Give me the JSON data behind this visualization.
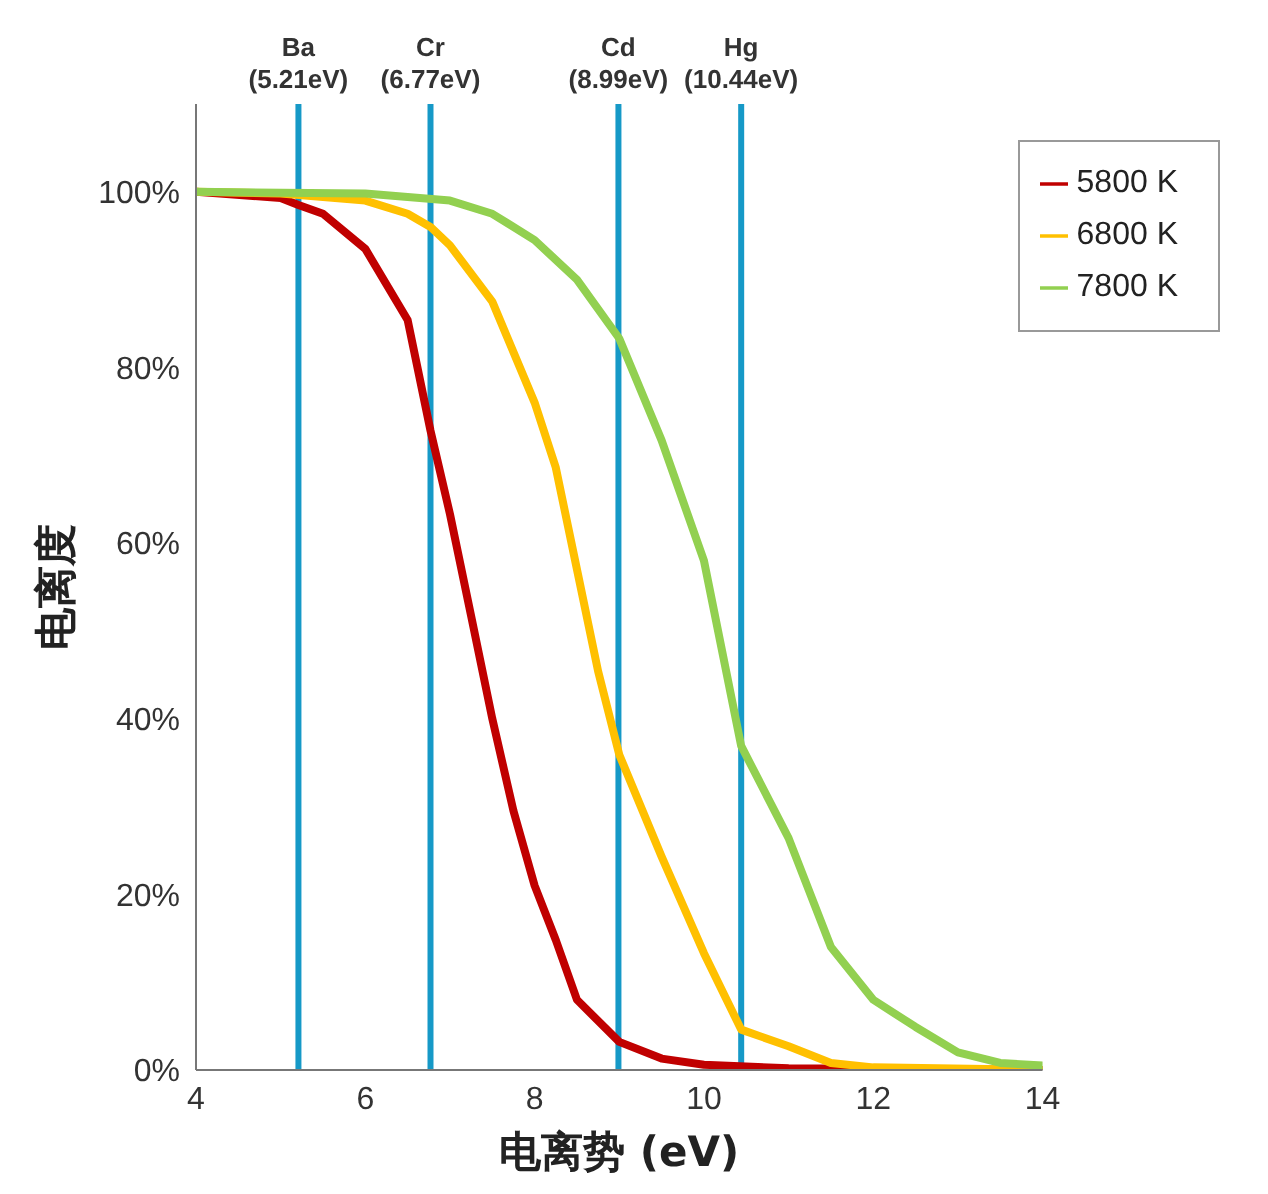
{
  "chart_data": {
    "type": "line",
    "xlabel": "电离势 (eV)",
    "ylabel": "电离度",
    "xlim": [
      4,
      14
    ],
    "xticks": [
      4,
      6,
      8,
      10,
      12,
      14
    ],
    "ylim": [
      0,
      110
    ],
    "yticks": [
      {
        "value": 0,
        "label": "0%"
      },
      {
        "value": 20,
        "label": "20%"
      },
      {
        "value": 40,
        "label": "40%"
      },
      {
        "value": 60,
        "label": "60%"
      },
      {
        "value": 80,
        "label": "80%"
      },
      {
        "value": 100,
        "label": "100%"
      }
    ],
    "grid": false,
    "legend": "top right",
    "marker": "none",
    "line_style": "solid",
    "series": [
      {
        "name": "5800 K",
        "color": "#c00000",
        "x": [
          4,
          5,
          5.21,
          5.5,
          6,
          6.5,
          6.77,
          7,
          7.25,
          7.5,
          7.75,
          8,
          8.25,
          8.5,
          9,
          9.5,
          10,
          11,
          14
        ],
        "values": [
          100,
          99.3,
          98.5,
          97.5,
          93.5,
          85.4,
          72.8,
          63.3,
          51.7,
          40,
          29.5,
          21,
          14.8,
          8,
          3.2,
          1.3,
          0.6,
          0.2,
          0
        ]
      },
      {
        "name": "6800 K",
        "color": "#ffc000",
        "x": [
          4,
          5,
          6,
          6.5,
          6.77,
          7,
          7.5,
          8,
          8.25,
          8.5,
          8.75,
          9,
          9.5,
          10,
          10.44,
          11,
          11.5,
          12,
          14
        ],
        "values": [
          100,
          99.8,
          99,
          97.5,
          96,
          93.9,
          87.5,
          76,
          68.6,
          57,
          45.4,
          35.9,
          24.3,
          13.3,
          4.6,
          2.7,
          0.8,
          0.3,
          0
        ]
      },
      {
        "name": "7800 K",
        "color": "#92d050",
        "x": [
          4,
          6,
          7,
          7.5,
          8,
          8.5,
          9,
          9.5,
          10,
          10.44,
          11,
          11.5,
          12,
          12.5,
          13,
          13.5,
          14
        ],
        "values": [
          100,
          99.8,
          99,
          97.5,
          94.5,
          90,
          83.3,
          71.7,
          58,
          36.9,
          26.4,
          14,
          8,
          4.9,
          2,
          0.8,
          0.5
        ]
      }
    ],
    "ref_lines": [
      {
        "axis": "x",
        "value": 5.21,
        "label": "Ba\n(5.21eV)",
        "color": "#1699c7"
      },
      {
        "axis": "x",
        "value": 6.77,
        "label": "Cr\n(6.77eV)",
        "color": "#1699c7"
      },
      {
        "axis": "x",
        "value": 8.99,
        "label": "Cd\n(8.99eV)",
        "color": "#1699c7"
      },
      {
        "axis": "x",
        "value": 10.44,
        "label": "Hg\n(10.44eV)",
        "color": "#1699c7"
      }
    ]
  }
}
